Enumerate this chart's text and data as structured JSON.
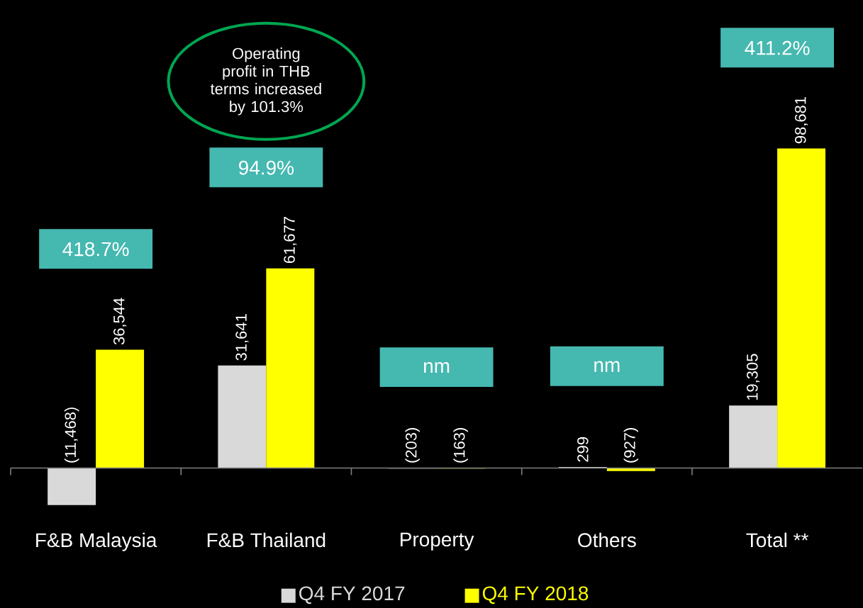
{
  "chart_data": {
    "type": "bar",
    "categories": [
      "F&B Malaysia",
      "F&B Thailand",
      "Property",
      "Others",
      "Total **"
    ],
    "series": [
      {
        "name": "Q4 FY 2017",
        "color": "#d9d9d9",
        "values": [
          -11468,
          31641,
          -203,
          299,
          19305
        ],
        "value_labels": [
          "(11,468)",
          "31,641",
          "(203)",
          "299",
          "19,305"
        ]
      },
      {
        "name": "Q4 FY 2018",
        "color": "#ffff00",
        "values": [
          36544,
          61677,
          -163,
          -927,
          98681
        ],
        "value_labels": [
          "36,544",
          "61,677",
          "(163)",
          "(927)",
          "98,681"
        ]
      }
    ],
    "annotations": [
      "418.7%",
      "94.9%",
      "nm",
      "nm",
      "411.2%",
      "Operating profit in THB terms increased by 101.3%"
    ],
    "legend": "bottom"
  }
}
